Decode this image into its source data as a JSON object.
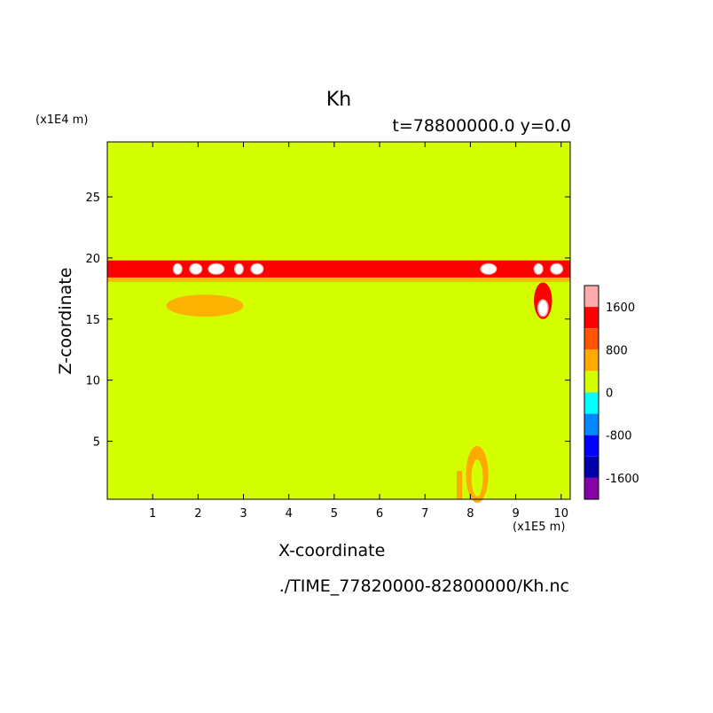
{
  "chart_data": {
    "type": "heatmap",
    "title": "Kh",
    "subtitle": "t=78800000.0 y=0.0",
    "xlabel": "X-coordinate",
    "ylabel": "Z-coordinate",
    "x_unit": "(x1E5 m)",
    "y_unit": "(x1E4 m)",
    "x_ticks": [
      1,
      2,
      3,
      4,
      5,
      6,
      7,
      8,
      9,
      10
    ],
    "y_ticks": [
      5,
      10,
      15,
      20,
      25
    ],
    "xlim": [
      0,
      10.2
    ],
    "ylim": [
      0.25,
      29.5
    ],
    "colorbar": {
      "labels": [
        1600,
        800,
        0,
        -800,
        -1600
      ],
      "levels": [
        {
          "min": 1600,
          "max": 2000,
          "color": "#ffaaaa"
        },
        {
          "min": 1200,
          "max": 1600,
          "color": "#ff0000"
        },
        {
          "min": 800,
          "max": 1200,
          "color": "#ff5500"
        },
        {
          "min": 400,
          "max": 800,
          "color": "#ffaa00"
        },
        {
          "min": 0,
          "max": 400,
          "color": "#d4ff00"
        },
        {
          "min": -400,
          "max": 0,
          "color": "#00ffff"
        },
        {
          "min": -800,
          "max": -400,
          "color": "#0088ff"
        },
        {
          "min": -1200,
          "max": -800,
          "color": "#0000ff"
        },
        {
          "min": -1600,
          "max": -1200,
          "color": "#0000aa"
        },
        {
          "min": -2000,
          "max": -1600,
          "color": "#8800aa"
        }
      ]
    },
    "background_color": "#d4ff00",
    "features": [
      {
        "x": [
          0,
          10.2
        ],
        "z": [
          18.4,
          19.8
        ],
        "value": 1200
      },
      {
        "x": [
          1.3,
          3.0
        ],
        "z": [
          15.2,
          17.0
        ],
        "value": 600
      },
      {
        "x": [
          9.4,
          9.8
        ],
        "z": [
          15.0,
          18.0
        ],
        "value": 1800
      },
      {
        "x": [
          7.7,
          8.6
        ],
        "z": [
          0.25,
          4.9
        ],
        "value": 600
      }
    ]
  },
  "footer": {
    "filename": "./TIME_77820000-82800000/Kh.nc"
  }
}
